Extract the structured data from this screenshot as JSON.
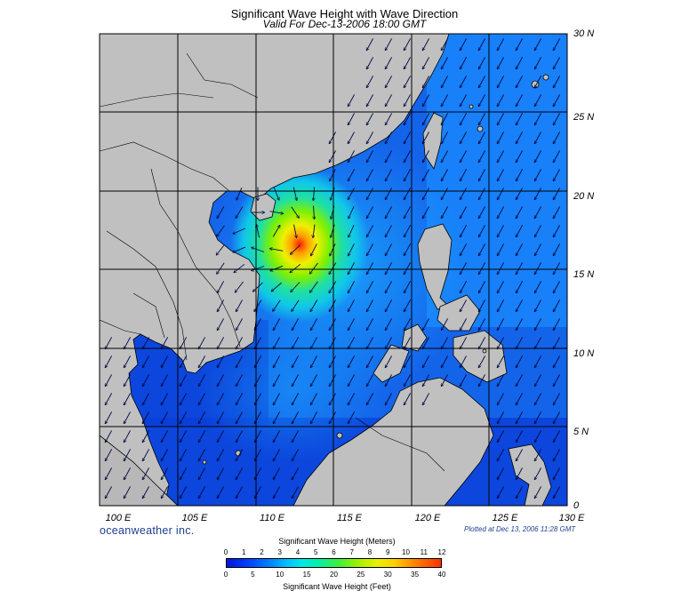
{
  "title": "Significant Wave Height with Wave Direction",
  "subtitle": "Valid For Dec-13-2006 18:00 GMT",
  "map": {
    "lat_labels": [
      "30 N",
      "25 N",
      "20 N",
      "15 N",
      "10 N",
      "5 N",
      "0"
    ],
    "lon_labels": [
      "100 E",
      "105 E",
      "110 E",
      "115 E",
      "120 E",
      "125 E",
      "130 E"
    ],
    "lat_range": [
      0,
      30
    ],
    "lon_range": [
      100,
      130
    ],
    "grid_step_degrees": 5,
    "land_color": "#c0c0c0",
    "ocean_base_color": "#1560e8",
    "storm_center": {
      "lat": 17.2,
      "lon": 111.8
    }
  },
  "credit": "oceanweather inc.",
  "plotted": "Plotted at Dec 13, 2006 11:28 GMT",
  "legend": {
    "meters_title": "Significant Wave Height (Meters)",
    "meters_ticks": [
      "0",
      "1",
      "2",
      "3",
      "4",
      "5",
      "6",
      "7",
      "8",
      "9",
      "10",
      "11",
      "12"
    ],
    "feet_title": "Significant Wave Height (Feet)",
    "feet_ticks": [
      "0",
      "5",
      "10",
      "15",
      "20",
      "25",
      "30",
      "35",
      "40"
    ]
  }
}
